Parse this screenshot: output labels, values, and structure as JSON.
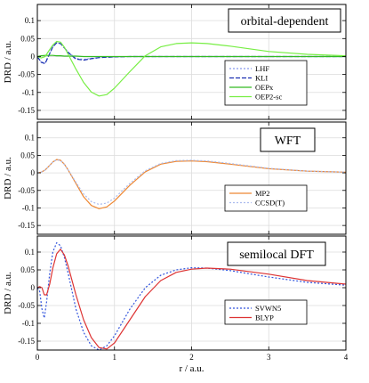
{
  "chart_data": [
    {
      "type": "line",
      "title": "orbital-dependent",
      "ylabel": "DRD / a.u.",
      "xlabel": "",
      "xlim": [
        0,
        4
      ],
      "ylim": [
        -0.175,
        0.145
      ],
      "x_ticks": [
        0,
        1,
        2,
        3,
        4
      ],
      "y_ticks": [
        "0.1",
        "0.05",
        "0",
        "-0.05",
        "-0.1",
        "-0.15"
      ],
      "y_tick_values": [
        0.1,
        0.05,
        0,
        -0.05,
        -0.1,
        -0.15
      ],
      "grid": true,
      "legend_position": "lower-right",
      "x": [
        0,
        0.05,
        0.1,
        0.15,
        0.2,
        0.25,
        0.3,
        0.35,
        0.4,
        0.5,
        0.6,
        0.7,
        0.8,
        0.9,
        1.0,
        1.2,
        1.4,
        1.6,
        1.8,
        2.0,
        2.2,
        2.5,
        3.0,
        3.5,
        4.0
      ],
      "series": [
        {
          "name": "LHF",
          "color": "#8899ee",
          "dash": "2,2",
          "values": [
            0,
            -0.015,
            -0.018,
            0.005,
            0.028,
            0.038,
            0.036,
            0.025,
            0.012,
            -0.005,
            -0.008,
            -0.005,
            -0.003,
            -0.002,
            -0.001,
            0,
            0,
            0,
            0,
            0,
            0,
            0,
            0,
            0,
            0
          ]
        },
        {
          "name": "KLI",
          "color": "#1a2fb0",
          "dash": "5,2",
          "values": [
            0,
            -0.016,
            -0.02,
            0.003,
            0.027,
            0.038,
            0.036,
            0.024,
            0.011,
            -0.007,
            -0.01,
            -0.006,
            -0.003,
            -0.002,
            -0.001,
            0,
            0,
            0,
            0,
            0,
            0,
            0,
            0,
            0,
            0
          ]
        },
        {
          "name": "OEPx",
          "color": "#33bb22",
          "dash": "",
          "values": [
            0,
            0.002,
            0.003,
            0.003,
            0.003,
            0.002,
            0.002,
            0.001,
            0.001,
            0.001,
            0,
            0,
            0,
            0,
            0,
            0,
            0,
            0,
            0,
            0,
            0,
            0,
            0,
            0,
            0
          ]
        },
        {
          "name": "OEP2-sc",
          "color": "#77ee44",
          "dash": "",
          "values": [
            0,
            -0.004,
            0.0,
            0.016,
            0.032,
            0.042,
            0.04,
            0.026,
            0.006,
            -0.035,
            -0.072,
            -0.099,
            -0.11,
            -0.106,
            -0.088,
            -0.042,
            0.002,
            0.027,
            0.036,
            0.038,
            0.036,
            0.029,
            0.014,
            0.006,
            0.002
          ]
        }
      ]
    },
    {
      "type": "line",
      "title": "WFT",
      "ylabel": "DRD / a.u.",
      "xlabel": "",
      "xlim": [
        0,
        4
      ],
      "ylim": [
        -0.175,
        0.145
      ],
      "x_ticks": [
        0,
        1,
        2,
        3,
        4
      ],
      "y_ticks": [
        "0.1",
        "0.05",
        "0",
        "-0.05",
        "-0.1",
        "-0.15"
      ],
      "y_tick_values": [
        0.1,
        0.05,
        0,
        -0.05,
        -0.1,
        -0.15
      ],
      "grid": true,
      "legend_position": "lower-right",
      "x": [
        0,
        0.05,
        0.1,
        0.15,
        0.2,
        0.25,
        0.3,
        0.35,
        0.4,
        0.5,
        0.6,
        0.7,
        0.8,
        0.9,
        1.0,
        1.2,
        1.4,
        1.6,
        1.8,
        2.0,
        2.2,
        2.5,
        3.0,
        3.5,
        4.0
      ],
      "series": [
        {
          "name": "MP2",
          "color": "#ee8833",
          "dash": "",
          "values": [
            0,
            0.002,
            0.008,
            0.019,
            0.031,
            0.038,
            0.036,
            0.025,
            0.008,
            -0.03,
            -0.068,
            -0.093,
            -0.102,
            -0.097,
            -0.08,
            -0.035,
            0.003,
            0.025,
            0.033,
            0.034,
            0.032,
            0.025,
            0.012,
            0.005,
            0.002
          ]
        },
        {
          "name": "CCSD(T)",
          "color": "#aabbee",
          "dash": "2,2",
          "values": [
            0,
            0.002,
            0.008,
            0.019,
            0.031,
            0.037,
            0.035,
            0.024,
            0.008,
            -0.027,
            -0.06,
            -0.082,
            -0.09,
            -0.086,
            -0.072,
            -0.03,
            0.006,
            0.027,
            0.035,
            0.036,
            0.034,
            0.027,
            0.013,
            0.005,
            0.002
          ]
        }
      ]
    },
    {
      "type": "line",
      "title": "semilocal DFT",
      "ylabel": "DRD / a.u.",
      "xlabel": "r / a.u.",
      "xlim": [
        0,
        4
      ],
      "ylim": [
        -0.175,
        0.145
      ],
      "x_ticks": [
        0,
        1,
        2,
        3,
        4
      ],
      "y_ticks": [
        "0.1",
        "0.05",
        "0",
        "-0.05",
        "-0.1",
        "-0.15"
      ],
      "y_tick_values": [
        0.1,
        0.05,
        0,
        -0.05,
        -0.1,
        -0.15
      ],
      "grid": true,
      "legend_position": "lower-right",
      "x": [
        0,
        0.03,
        0.06,
        0.09,
        0.12,
        0.16,
        0.2,
        0.25,
        0.3,
        0.35,
        0.4,
        0.5,
        0.6,
        0.7,
        0.8,
        0.9,
        1.0,
        1.2,
        1.4,
        1.6,
        1.8,
        2.0,
        2.2,
        2.5,
        3.0,
        3.5,
        4.0
      ],
      "series": [
        {
          "name": "SVWN5",
          "color": "#3355dd",
          "dash": "2,2",
          "values": [
            0,
            -0.01,
            -0.06,
            -0.085,
            -0.04,
            0.04,
            0.1,
            0.126,
            0.118,
            0.085,
            0.04,
            -0.06,
            -0.125,
            -0.163,
            -0.175,
            -0.163,
            -0.135,
            -0.06,
            0.0,
            0.035,
            0.05,
            0.056,
            0.055,
            0.048,
            0.03,
            0.015,
            0.007
          ]
        },
        {
          "name": "BLYP",
          "color": "#dd3333",
          "dash": "",
          "values": [
            0,
            0.003,
            0.0,
            -0.02,
            -0.02,
            0.01,
            0.055,
            0.095,
            0.108,
            0.092,
            0.06,
            -0.02,
            -0.09,
            -0.14,
            -0.168,
            -0.172,
            -0.155,
            -0.09,
            -0.025,
            0.02,
            0.043,
            0.052,
            0.055,
            0.052,
            0.038,
            0.02,
            0.01
          ]
        }
      ]
    }
  ]
}
